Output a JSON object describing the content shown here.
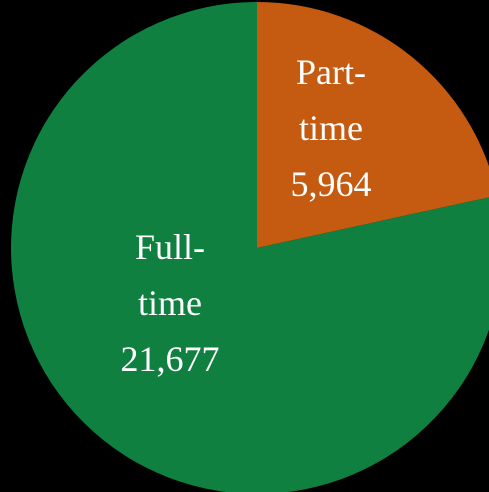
{
  "chart_data": {
    "type": "pie",
    "categories": [
      "Part-time",
      "Full-time"
    ],
    "values": [
      5964,
      21677
    ],
    "value_labels": [
      "5,964",
      "21,677"
    ],
    "colors": [
      "#c55a11",
      "#0f8040"
    ]
  }
}
